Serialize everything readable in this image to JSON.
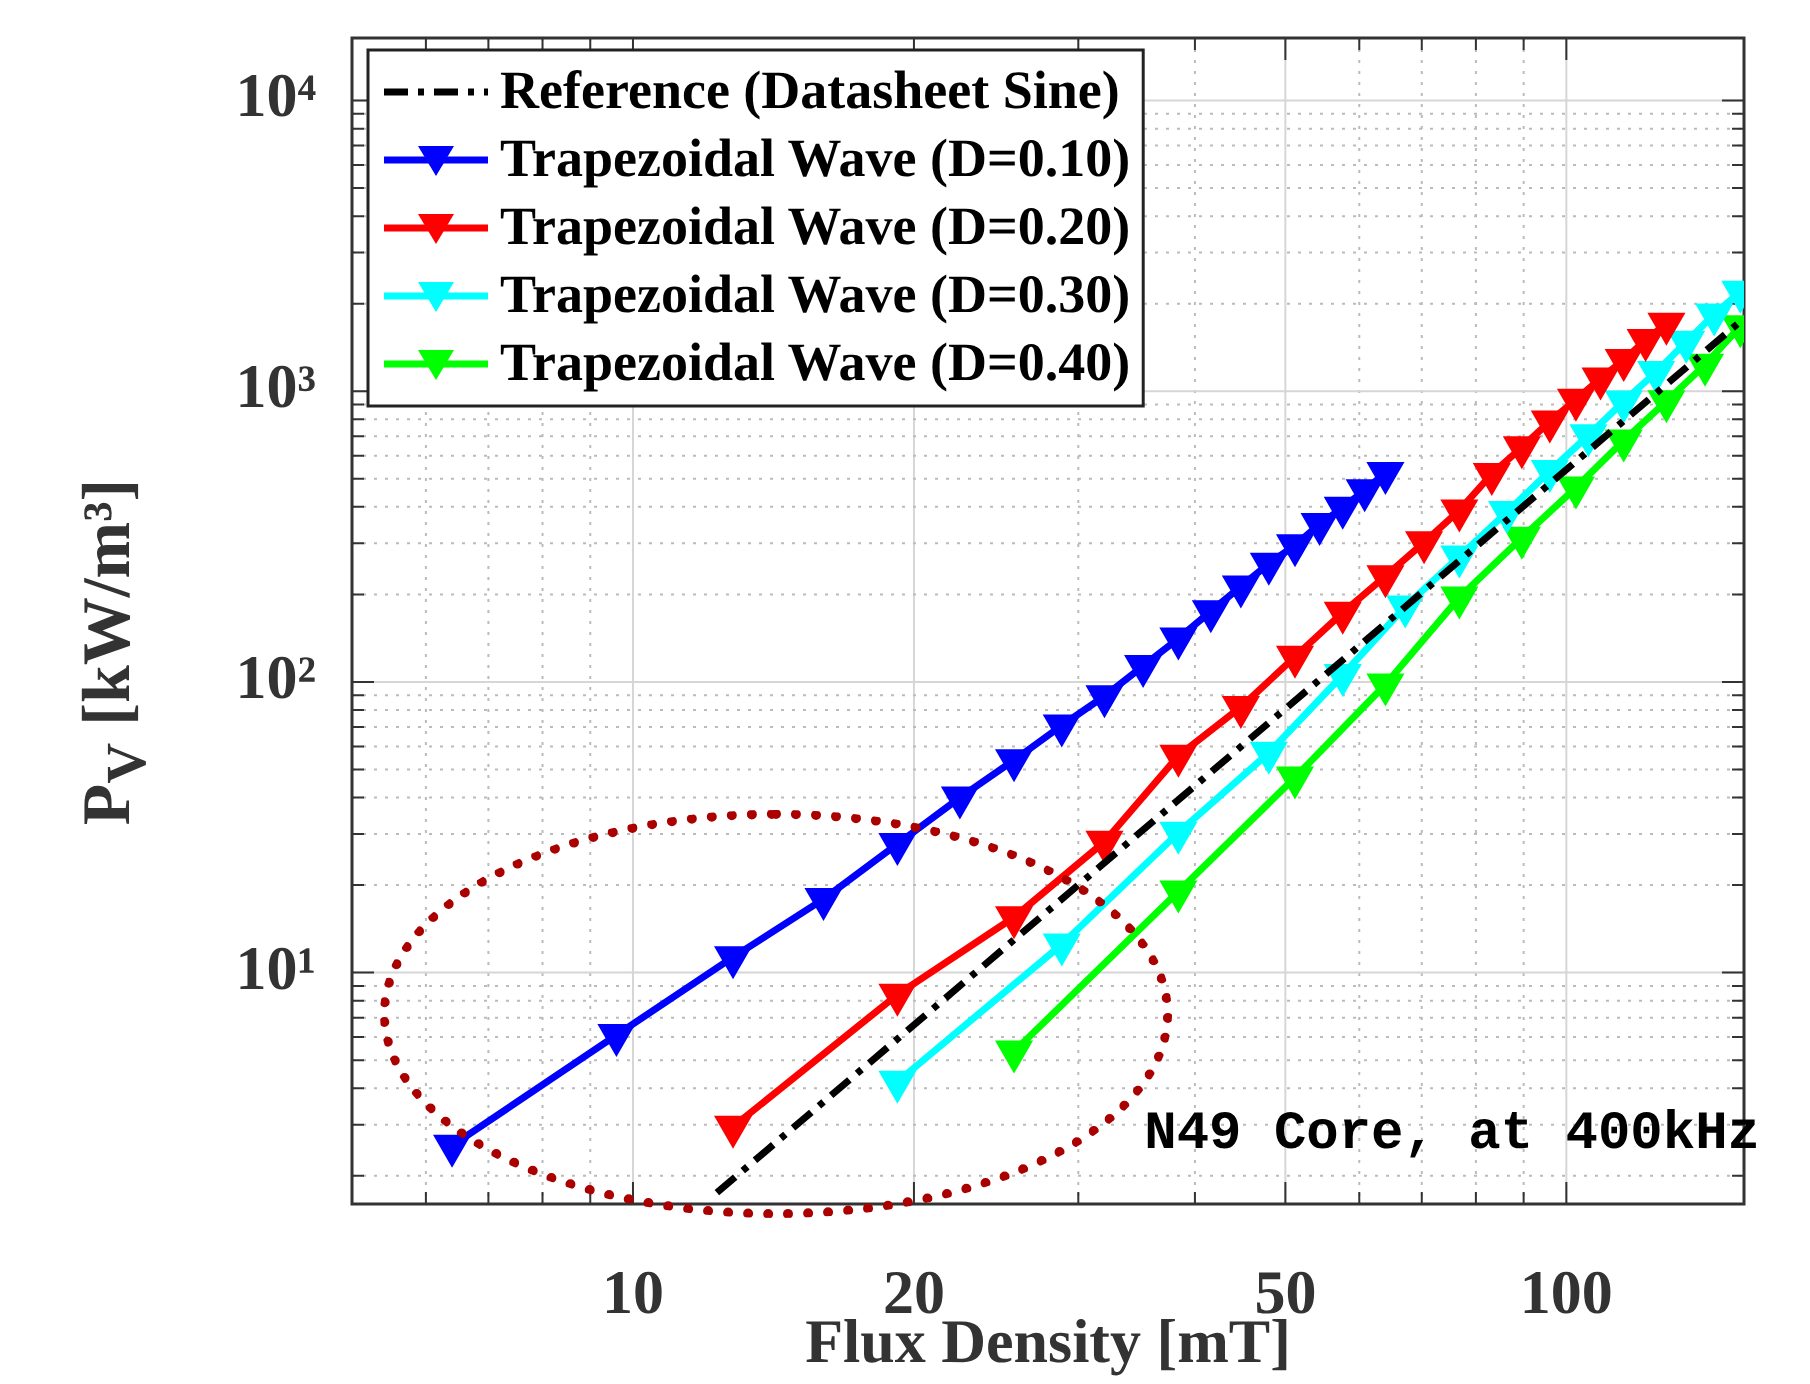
{
  "chart_data": {
    "type": "line",
    "xlabel": "Flux Density [mT]",
    "ylabel": "P$_{V}$ [kW/m³]",
    "log": "xy",
    "xlim": [
      5,
      155
    ],
    "ylim": [
      1.6,
      16400
    ],
    "xticks": [
      {
        "value": 6,
        "label": null
      },
      {
        "value": 7,
        "label": null
      },
      {
        "value": 8,
        "label": null
      },
      {
        "value": 9,
        "label": null
      },
      10,
      20,
      {
        "value": 30,
        "label": null
      },
      {
        "value": 40,
        "label": null
      },
      50,
      {
        "value": 60,
        "label": null
      },
      {
        "value": 70,
        "label": null
      },
      {
        "value": 80,
        "label": null
      },
      {
        "value": 90,
        "label": null
      },
      100
    ],
    "yticks": [
      {
        "value": 2,
        "label": null
      },
      {
        "value": 3,
        "label": null
      },
      {
        "value": 4,
        "label": null
      },
      {
        "value": 5,
        "label": null
      },
      {
        "value": 6,
        "label": null
      },
      {
        "value": 7,
        "label": null
      },
      {
        "value": 8,
        "label": null
      },
      {
        "value": 9,
        "label": null
      },
      {
        "value": 10,
        "label": "10¹"
      },
      {
        "value": 20,
        "label": null
      },
      {
        "value": 30,
        "label": null
      },
      {
        "value": 40,
        "label": null
      },
      {
        "value": 50,
        "label": null
      },
      {
        "value": 60,
        "label": null
      },
      {
        "value": 70,
        "label": null
      },
      {
        "value": 80,
        "label": null
      },
      {
        "value": 90,
        "label": null
      },
      {
        "value": 100,
        "label": "10²"
      },
      {
        "value": 200,
        "label": null
      },
      {
        "value": 300,
        "label": null
      },
      {
        "value": 400,
        "label": null
      },
      {
        "value": 500,
        "label": null
      },
      {
        "value": 600,
        "label": null
      },
      {
        "value": 700,
        "label": null
      },
      {
        "value": 800,
        "label": null
      },
      {
        "value": 900,
        "label": null
      },
      {
        "value": 1000,
        "label": "10³"
      },
      {
        "value": 2000,
        "label": null
      },
      {
        "value": 3000,
        "label": null
      },
      {
        "value": 4000,
        "label": null
      },
      {
        "value": 5000,
        "label": null
      },
      {
        "value": 6000,
        "label": null
      },
      {
        "value": 7000,
        "label": null
      },
      {
        "value": 8000,
        "label": null
      },
      {
        "value": 9000,
        "label": null
      },
      {
        "value": 10000,
        "label": "10⁴"
      }
    ],
    "grid": true,
    "legend": "top left",
    "annotations": [
      "N49 Core, at 400kHz"
    ],
    "series": [
      {
        "name": "Reference (Datasheet Sine)",
        "color": "#000000",
        "marker": "none",
        "line_style": "dashed",
        "x": [
          12.3,
          153
        ],
        "values": [
          1.75,
          1718
        ]
      },
      {
        "name": "Trapezoidal Wave (D=0.10)",
        "color": "#0000ff",
        "marker": "triangle",
        "line_style": "solid",
        "x": [
          6.4,
          9.6,
          12.8,
          16,
          19.2,
          22.4,
          25.6,
          28.8,
          32,
          35.2,
          38.4,
          41.6,
          44.8,
          48,
          51.2,
          54.4,
          57.6,
          60.8,
          64
        ],
        "values": [
          2.54,
          6.1,
          11.3,
          17.9,
          27.7,
          40,
          53.8,
          70.8,
          89.3,
          113.5,
          141,
          175,
          213,
          255,
          295,
          349,
          397,
          456,
          523
        ]
      },
      {
        "name": "Trapezoidal Wave (D=0.20)",
        "color": "#ff0000",
        "marker": "triangle",
        "line_style": "solid",
        "x": [
          12.8,
          19.2,
          25.6,
          32,
          38.4,
          44.8,
          51.2,
          57.6,
          64,
          70.4,
          76.8,
          83.2,
          89.6,
          96,
          102.4,
          108.8,
          115.2,
          121.6,
          128
        ],
        "values": [
          2.95,
          8.4,
          15.5,
          28.2,
          55.7,
          81.9,
          122,
          173,
          231,
          302,
          389,
          519,
          641,
          787,
          935,
          1106,
          1280,
          1500,
          1707
        ]
      },
      {
        "name": "Trapezoidal Wave (D=0.30)",
        "color": "#00ffff",
        "marker": "triangle",
        "line_style": "solid",
        "x": [
          19.2,
          28.8,
          38.4,
          48,
          57.6,
          67.2,
          76.8,
          86.4,
          96,
          105.6,
          115.2,
          124.8,
          134.4,
          144,
          153.6
        ],
        "values": [
          4.21,
          12.5,
          30.3,
          57,
          105.6,
          181.6,
          270,
          384,
          531,
          705,
          922,
          1164,
          1478,
          1836,
          2198
        ]
      },
      {
        "name": "Trapezoidal Wave (D=0.40)",
        "color": "#00ff00",
        "marker": "triangle",
        "line_style": "solid",
        "x": [
          25.6,
          38.4,
          51.2,
          64,
          76.8,
          89.6,
          102.4,
          115.2,
          128,
          140.8,
          153.6
        ],
        "values": [
          5.35,
          19,
          46.9,
          98,
          195,
          313,
          466,
          676,
          923,
          1233,
          1671
        ]
      }
    ]
  }
}
